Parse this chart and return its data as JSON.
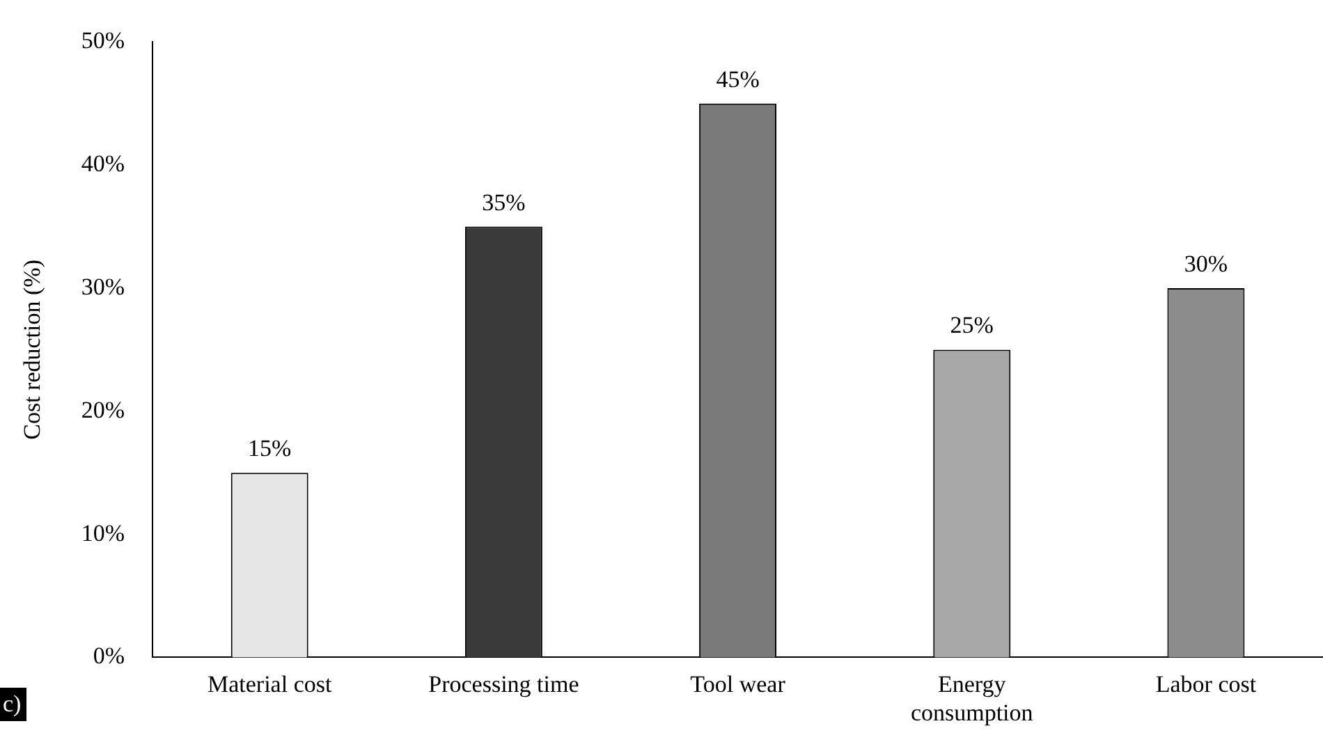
{
  "chart_data": {
    "type": "bar",
    "ylabel": "Cost reduction (%)",
    "categories": [
      "Material cost",
      "Processing time",
      "Tool wear",
      "Energy consumption",
      "Labor cost"
    ],
    "values": [
      15,
      35,
      45,
      25,
      30
    ],
    "colors": [
      "#e6e6e6",
      "#3a3a3a",
      "#7a7a7a",
      "#a8a8a8",
      "#8c8c8c"
    ],
    "value_labels": [
      "15%",
      "35%",
      "45%",
      "25%",
      "30%"
    ],
    "ylim": [
      0,
      50
    ],
    "yticks": [
      {
        "value": 0,
        "label": "0%"
      },
      {
        "value": 10,
        "label": "10%"
      },
      {
        "value": 20,
        "label": "20%"
      },
      {
        "value": 30,
        "label": "30%"
      },
      {
        "value": 40,
        "label": "40%"
      },
      {
        "value": 50,
        "label": "50%"
      }
    ],
    "grid": false,
    "legend": false,
    "annotations": [
      "c)"
    ]
  }
}
